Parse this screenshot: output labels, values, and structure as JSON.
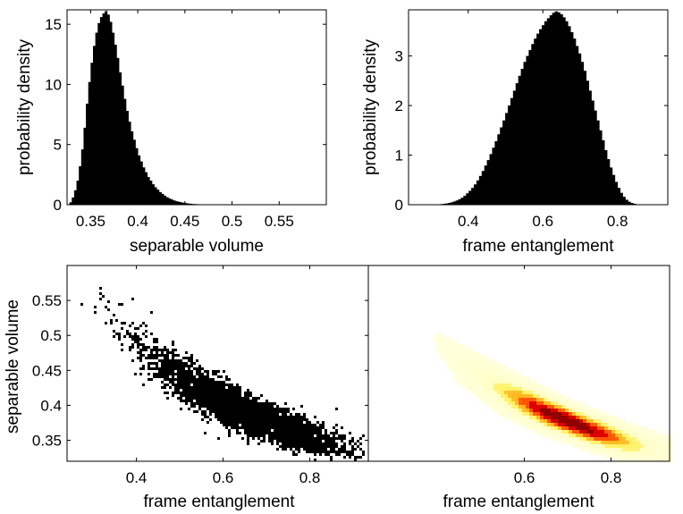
{
  "chart_data": [
    {
      "type": "bar",
      "panel": "top-left",
      "xlabel": "separable volume",
      "ylabel": "probability density",
      "xlim": [
        0.325,
        0.6
      ],
      "ylim": [
        0,
        16.2
      ],
      "xticks": [
        0.35,
        0.4,
        0.45,
        0.5,
        0.55
      ],
      "xtick_labels": [
        "0.35",
        "0.4",
        "0.45",
        "0.5",
        "0.55"
      ],
      "yticks": [
        0,
        5,
        10,
        15
      ],
      "ytick_labels": [
        "0",
        "5",
        "10",
        "15"
      ],
      "bin_width": 0.0025,
      "bin_start": 0.325,
      "series": [
        {
          "values": [
            0,
            0.2,
            0.6,
            1.2,
            2.0,
            3.2,
            4.6,
            6.4,
            8.4,
            10.2,
            11.8,
            13.2,
            14.3,
            15.1,
            15.6,
            15.9,
            16.1,
            15.8,
            15.2,
            14.3,
            13.3,
            12.2,
            11.0,
            9.9,
            8.8,
            7.8,
            6.9,
            6.1,
            5.4,
            4.7,
            4.1,
            3.6,
            3.1,
            2.7,
            2.3,
            2.0,
            1.7,
            1.45,
            1.25,
            1.05,
            0.9,
            0.75,
            0.62,
            0.52,
            0.43,
            0.35,
            0.29,
            0.24,
            0.2,
            0.16,
            0.13,
            0.1,
            0.08,
            0.06,
            0.05,
            0.04,
            0.03,
            0.02,
            0.015,
            0.01,
            0.008,
            0.006,
            0.004,
            0.003,
            0.002,
            0.002,
            0.001,
            0.001,
            0.001,
            0.001,
            0,
            0,
            0,
            0,
            0,
            0,
            0,
            0,
            0,
            0,
            0,
            0,
            0,
            0,
            0,
            0,
            0,
            0,
            0,
            0,
            0,
            0,
            0,
            0,
            0,
            0,
            0,
            0,
            0,
            0,
            0,
            0,
            0,
            0,
            0,
            0,
            0,
            0,
            0,
            0
          ],
          "color": "#000000"
        }
      ]
    },
    {
      "type": "bar",
      "panel": "top-right",
      "xlabel": "frame entanglement",
      "ylabel": "probability density",
      "xlim": [
        0.24,
        0.935
      ],
      "ylim": [
        0,
        3.93
      ],
      "xticks": [
        0.4,
        0.6,
        0.8
      ],
      "xtick_labels": [
        "0.4",
        "0.6",
        "0.8"
      ],
      "yticks": [
        0,
        1,
        2,
        3
      ],
      "ytick_labels": [
        "0",
        "1",
        "2",
        "3"
      ],
      "bin_width": 0.007,
      "bin_start": 0.24,
      "series": [
        {
          "values": [
            0,
            0,
            0,
            0,
            0,
            0,
            0,
            0,
            0,
            0,
            0.005,
            0.008,
            0.012,
            0.018,
            0.025,
            0.035,
            0.048,
            0.065,
            0.085,
            0.11,
            0.14,
            0.18,
            0.23,
            0.28,
            0.34,
            0.41,
            0.49,
            0.58,
            0.68,
            0.79,
            0.9,
            1.02,
            1.15,
            1.28,
            1.42,
            1.56,
            1.7,
            1.85,
            2.0,
            2.15,
            2.3,
            2.45,
            2.6,
            2.74,
            2.88,
            3.0,
            3.12,
            3.24,
            3.35,
            3.45,
            3.54,
            3.62,
            3.7,
            3.76,
            3.82,
            3.87,
            3.9,
            3.88,
            3.84,
            3.78,
            3.7,
            3.6,
            3.48,
            3.35,
            3.2,
            3.05,
            2.88,
            2.7,
            2.5,
            2.3,
            2.1,
            1.9,
            1.7,
            1.5,
            1.3,
            1.1,
            0.92,
            0.75,
            0.6,
            0.46,
            0.34,
            0.24,
            0.16,
            0.1,
            0.06,
            0.035,
            0.02,
            0.01,
            0.005,
            0.002,
            0,
            0,
            0,
            0,
            0,
            0,
            0,
            0,
            0,
            0
          ],
          "color": "#000000"
        }
      ]
    },
    {
      "type": "scatter",
      "panel": "bottom-left",
      "xlabel": "frame entanglement",
      "ylabel": "separable volume",
      "xlim": [
        0.24,
        0.935
      ],
      "ylim": [
        0.32,
        0.6
      ],
      "xticks": [
        0.4,
        0.6,
        0.8
      ],
      "xtick_labels": [
        "0.4",
        "0.6",
        "0.8"
      ],
      "yticks": [
        0.35,
        0.4,
        0.45,
        0.5,
        0.55
      ],
      "ytick_labels": [
        "0.35",
        "0.4",
        "0.45",
        "0.5",
        "0.55"
      ],
      "trend": {
        "x": [
          0.27,
          0.35,
          0.45,
          0.55,
          0.65,
          0.75,
          0.85,
          0.92
        ],
        "y": [
          0.58,
          0.52,
          0.46,
          0.42,
          0.39,
          0.365,
          0.345,
          0.335
        ]
      },
      "color": "#000000"
    },
    {
      "type": "heatmap",
      "panel": "bottom-right",
      "xlabel": "frame entanglement",
      "ylabel": "",
      "xlim": [
        0.24,
        0.935
      ],
      "ylim": [
        0.32,
        0.6
      ],
      "xticks": [
        0.6,
        0.8
      ],
      "xtick_labels": [
        "0.6",
        "0.8"
      ],
      "colormap": [
        "#ffffff",
        "#ffffa0",
        "#ffee33",
        "#ffb000",
        "#ff5500",
        "#dd0000",
        "#900000"
      ],
      "peak": {
        "x": 0.7,
        "y": 0.37
      }
    }
  ]
}
